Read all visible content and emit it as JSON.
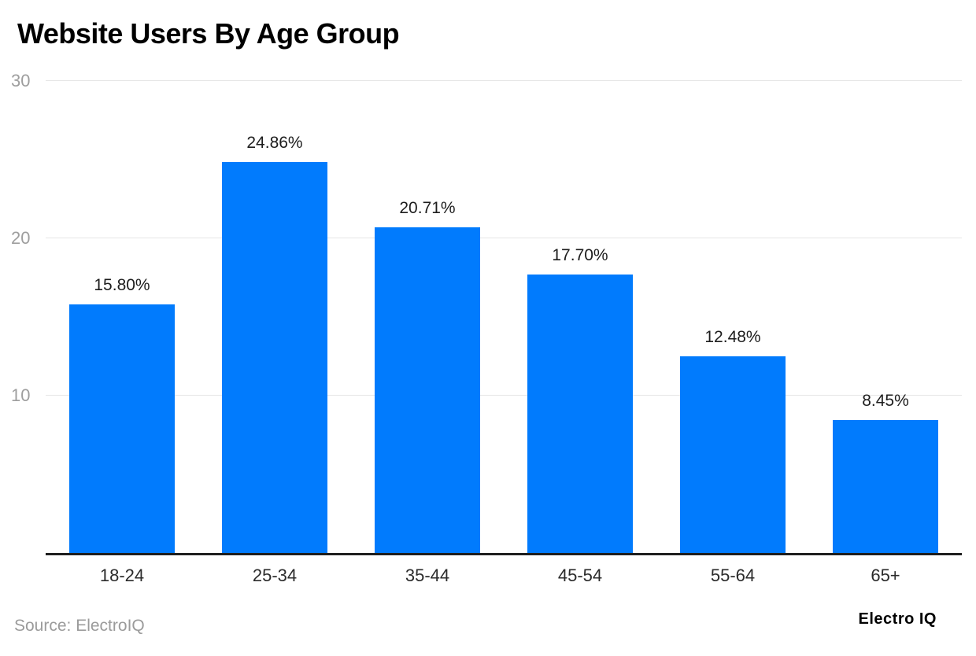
{
  "page": {
    "title": "Website Users By Age Group",
    "source_label": "Source: ElectroIQ",
    "brand": "Electro IQ"
  },
  "chart_data": {
    "type": "bar",
    "title": "Website Users By Age Group",
    "categories": [
      "18-24",
      "25-34",
      "35-44",
      "45-54",
      "55-64",
      "65+"
    ],
    "values": [
      15.8,
      24.86,
      20.71,
      17.7,
      12.48,
      8.45
    ],
    "value_labels": [
      "15.80%",
      "24.86%",
      "20.71%",
      "17.70%",
      "12.48%",
      "8.45%"
    ],
    "xlabel": "",
    "ylabel": "",
    "ylim": [
      0,
      30
    ],
    "yticks": [
      10,
      20,
      30
    ],
    "grid": true,
    "legend": "none",
    "bar_color": "#017BFD",
    "gridline_color": "#e6e6e6",
    "axis_line_color": "#1f1f1f",
    "tick_label_color": "#9e9e9e"
  }
}
